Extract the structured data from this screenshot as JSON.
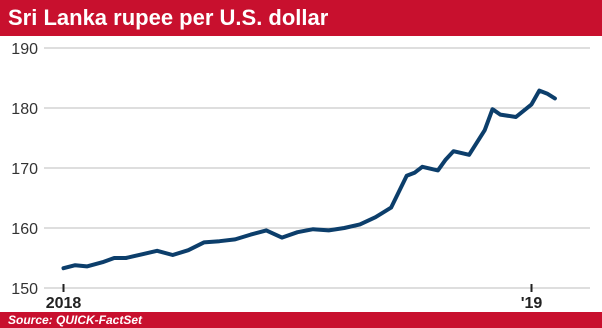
{
  "header": {
    "title": "Sri Lanka rupee per U.S. dollar"
  },
  "footer": {
    "source": "Source: QUICK-FactSet"
  },
  "colors": {
    "brand": "#c8102e",
    "line": "#0c3e6b",
    "grid": "#bdbdbd"
  },
  "chart_data": {
    "type": "line",
    "title": "Sri Lanka rupee per U.S. dollar",
    "xlabel": "",
    "ylabel": "",
    "ylim": [
      150,
      190
    ],
    "yticks": [
      190,
      180,
      170,
      160,
      150
    ],
    "xticks": [
      {
        "label": "2018",
        "x": 0
      },
      {
        "label": "'19",
        "x": 12
      }
    ],
    "xlim": [
      -0.5,
      13.5
    ],
    "grid": "horizontal",
    "series": [
      {
        "x": [
          0,
          0.3,
          0.6,
          1.0,
          1.3,
          1.6,
          2.0,
          2.4,
          2.8,
          3.2,
          3.6,
          4.0,
          4.4,
          4.8,
          5.2,
          5.6,
          6.0,
          6.4,
          6.8,
          7.2,
          7.6,
          8.0,
          8.4,
          8.8,
          9.0,
          9.2,
          9.6,
          9.8,
          10.0,
          10.4,
          10.8,
          11.0,
          11.2,
          11.6,
          12.0,
          12.2,
          12.4,
          12.6
        ],
        "y": [
          153.3,
          153.8,
          153.6,
          154.3,
          155.0,
          155.0,
          155.6,
          156.2,
          155.5,
          156.3,
          157.6,
          157.8,
          158.1,
          158.9,
          159.6,
          158.4,
          159.3,
          159.8,
          159.6,
          160.0,
          160.6,
          161.8,
          163.4,
          168.7,
          169.2,
          170.2,
          169.6,
          171.4,
          172.8,
          172.2,
          176.3,
          179.8,
          178.9,
          178.5,
          180.6,
          182.9,
          182.4,
          181.6
        ]
      }
    ]
  }
}
